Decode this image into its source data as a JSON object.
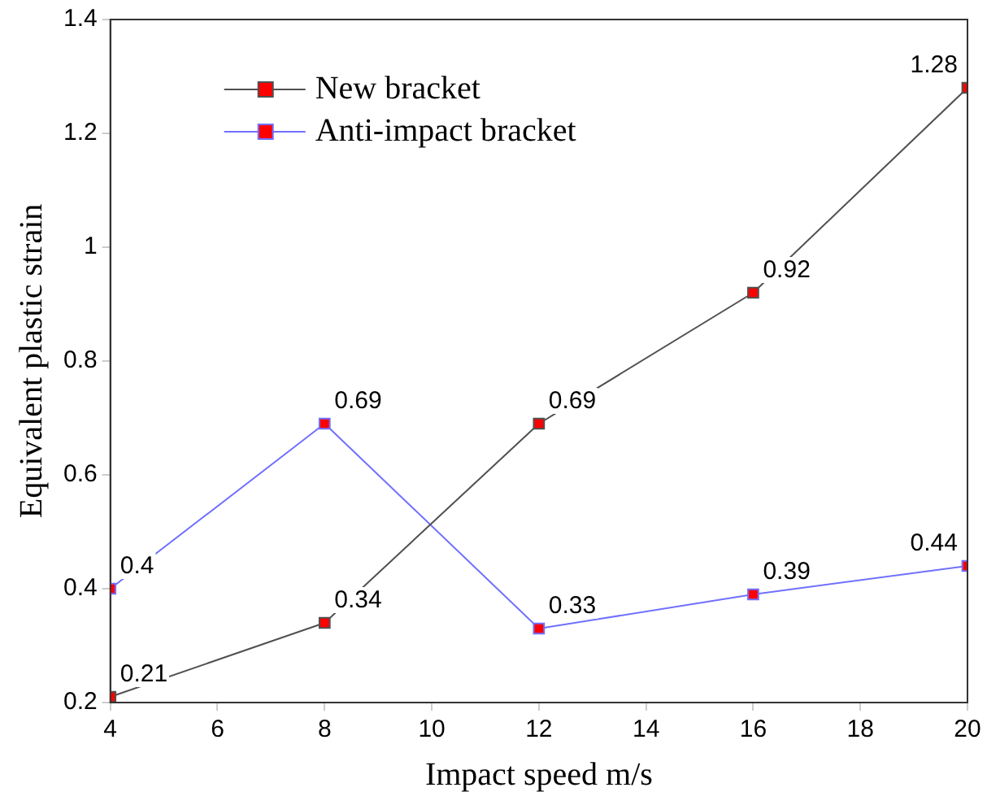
{
  "chart_data": {
    "type": "line",
    "xlabel": "Impact speed m/s",
    "ylabel": "Equivalent plastic strain",
    "x": [
      4,
      8,
      12,
      16,
      20
    ],
    "series": [
      {
        "name": "New bracket",
        "color": "#505050",
        "values": [
          0.21,
          0.34,
          0.69,
          0.92,
          1.28
        ]
      },
      {
        "name": "Anti-impact bracket",
        "color": "#7070ff",
        "values": [
          0.4,
          0.69,
          0.33,
          0.39,
          0.44
        ]
      }
    ],
    "xlim": [
      4,
      20
    ],
    "xticks": [
      4,
      6,
      8,
      10,
      12,
      14,
      16,
      18,
      20
    ],
    "ylim": [
      0.2,
      1.4
    ],
    "yticks": [
      0.2,
      0.4,
      0.6,
      0.8,
      1,
      1.2,
      1.4
    ],
    "grid": false,
    "legend": "top left",
    "marker": "square",
    "line_style": "solid",
    "data_labels": true
  }
}
